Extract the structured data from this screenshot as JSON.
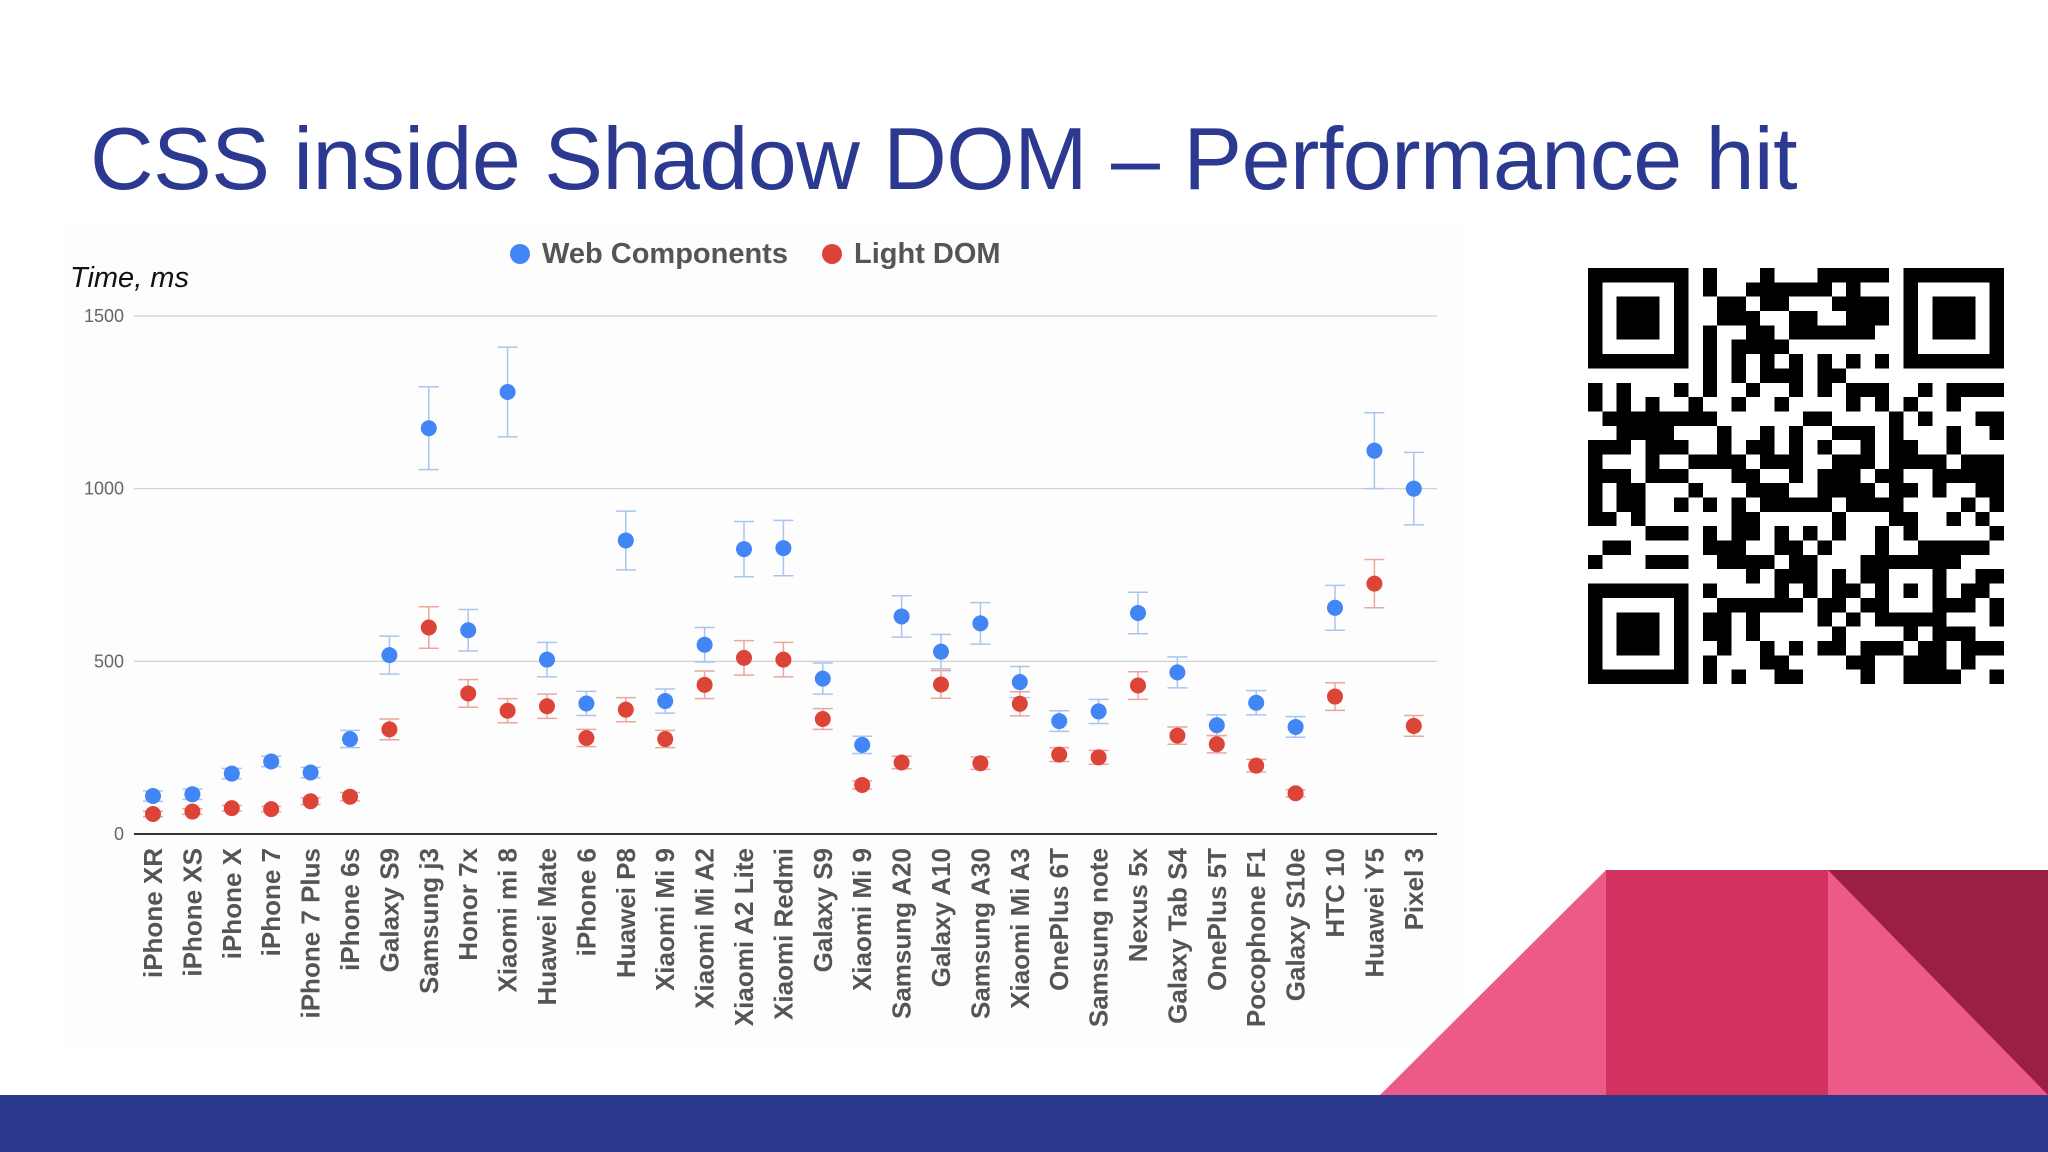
{
  "slide": {
    "title": "CSS inside Shadow DOM – Performance hit",
    "colors": {
      "title": "#2b3990",
      "footer": "#2b3a8c",
      "deco_pink": "#ec5a88",
      "deco_magenta": "#d33260",
      "deco_maroon": "#9b1f45"
    }
  },
  "qr_code": {
    "icon": "qr-code"
  },
  "chart_data": {
    "type": "scatter",
    "subtype": "dot plot with error bars",
    "title": "",
    "xlabel": "",
    "ylabel": "Time, ms",
    "ylim": [
      0,
      1500
    ],
    "yticks": [
      0,
      500,
      1000,
      1500
    ],
    "grid": true,
    "legend_position": "top",
    "categories": [
      "iPhone XR",
      "iPhone XS",
      "iPhone X",
      "iPhone 7",
      "iPhone 7 Plus",
      "iPhone 6s",
      "Galaxy S9",
      "Samsung j3",
      "Honor 7x",
      "Xiaomi mi 8",
      "Huawei Mate",
      "iPhone 6",
      "Huawei P8",
      "Xiaomi Mi 9",
      "Xiaomi Mi A2",
      "Xiaomi A2 Lite",
      "Xiaomi Redmi",
      "Galaxy S9",
      "Xiaomi Mi 9",
      "Samsung A20",
      "Galaxy A10",
      "Samsung A30",
      "Xiaomi Mi A3",
      "OnePlus 6T",
      "Samsung note",
      "Nexus 5x",
      "Galaxy Tab S4",
      "OnePlus 5T",
      "Pocophone F1",
      "Galaxy S10e",
      "HTC 10",
      "Huawei Y5",
      "Pixel 3"
    ],
    "series": [
      {
        "name": "Web Components",
        "color": "#4285f4",
        "values": [
          110,
          115,
          175,
          210,
          178,
          275,
          518,
          1175,
          590,
          1280,
          505,
          378,
          850,
          385,
          548,
          825,
          828,
          450,
          258,
          630,
          528,
          610,
          440,
          327,
          355,
          640,
          468,
          315,
          380,
          310,
          655,
          1110,
          1000
        ],
        "errors": [
          15,
          15,
          15,
          15,
          15,
          25,
          55,
          120,
          60,
          130,
          50,
          35,
          85,
          35,
          50,
          80,
          80,
          45,
          25,
          60,
          50,
          60,
          45,
          30,
          35,
          60,
          45,
          30,
          35,
          30,
          65,
          110,
          105
        ]
      },
      {
        "name": "Light DOM",
        "color": "#db4437",
        "values": [
          58,
          65,
          75,
          72,
          95,
          108,
          303,
          598,
          407,
          357,
          370,
          278,
          360,
          275,
          432,
          510,
          505,
          333,
          142,
          207,
          433,
          205,
          377,
          230,
          222,
          430,
          285,
          260,
          198,
          118,
          398,
          725,
          313
        ],
        "errors": [
          8,
          8,
          8,
          8,
          10,
          12,
          30,
          60,
          40,
          35,
          35,
          25,
          35,
          25,
          40,
          50,
          50,
          30,
          12,
          18,
          40,
          18,
          35,
          20,
          20,
          40,
          25,
          25,
          18,
          10,
          40,
          70,
          30
        ]
      }
    ]
  }
}
